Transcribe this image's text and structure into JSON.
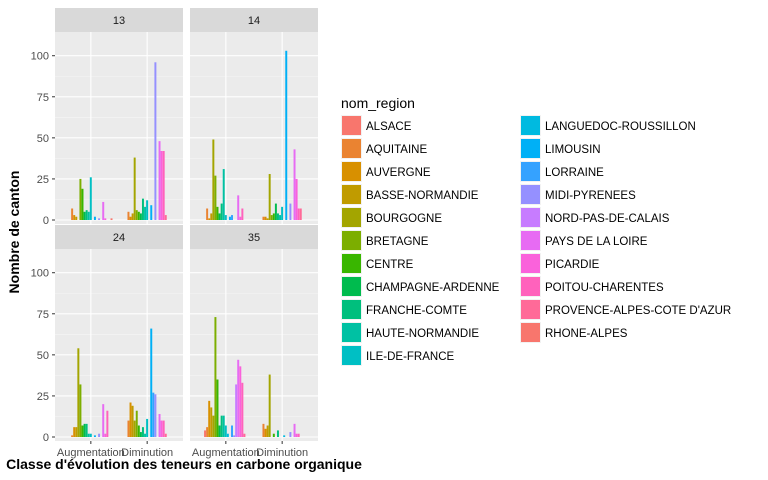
{
  "chart_data": {
    "type": "bar",
    "xlabel": "Classe d'évolution des teneurs en carbone organique",
    "ylabel": "Nombre de canton",
    "ylim": [
      0,
      112
    ],
    "yticks": [
      0,
      25,
      50,
      75,
      100
    ],
    "categories": [
      "Augmentation",
      "Diminution"
    ],
    "grid": true,
    "legend_position": "right",
    "legend_title": "nom_region",
    "regions": [
      {
        "name": "ALSACE",
        "color": "#F8766D"
      },
      {
        "name": "AQUITAINE",
        "color": "#EA8331"
      },
      {
        "name": "AUVERGNE",
        "color": "#D89000"
      },
      {
        "name": "BASSE-NORMANDIE",
        "color": "#C09B00"
      },
      {
        "name": "BOURGOGNE",
        "color": "#A3A500"
      },
      {
        "name": "BRETAGNE",
        "color": "#7CAE00"
      },
      {
        "name": "CENTRE",
        "color": "#39B600"
      },
      {
        "name": "CHAMPAGNE-ARDENNE",
        "color": "#00BB4E"
      },
      {
        "name": "FRANCHE-COMTE",
        "color": "#00BF7D"
      },
      {
        "name": "HAUTE-NORMANDIE",
        "color": "#00C1A3"
      },
      {
        "name": "ILE-DE-FRANCE",
        "color": "#00BFC4"
      },
      {
        "name": "LANGUEDOC-ROUSSILLON",
        "color": "#00BAE0"
      },
      {
        "name": "LIMOUSIN",
        "color": "#00B0F6"
      },
      {
        "name": "LORRAINE",
        "color": "#35A2FF"
      },
      {
        "name": "MIDI-PYRENEES",
        "color": "#9590FF"
      },
      {
        "name": "NORD-PAS-DE-CALAIS",
        "color": "#C77CFF"
      },
      {
        "name": "PAYS DE LA LOIRE",
        "color": "#E76BF3"
      },
      {
        "name": "PICARDIE",
        "color": "#FA62DB"
      },
      {
        "name": "POITOU-CHARENTES",
        "color": "#FF62BC"
      },
      {
        "name": "PROVENCE-ALPES-COTE D'AZUR",
        "color": "#FF6A98"
      },
      {
        "name": "RHONE-ALPES",
        "color": "#F8766D"
      }
    ],
    "panels": [
      {
        "label": "13",
        "values": {
          "Augmentation": [
            0,
            7,
            3,
            2,
            0,
            25,
            19,
            5,
            6,
            5,
            26,
            0,
            2,
            0,
            1,
            0,
            11,
            1,
            0,
            0,
            1
          ],
          "Diminution": [
            0,
            5,
            2,
            4,
            38,
            6,
            5,
            4,
            13,
            8,
            12,
            0,
            9,
            0,
            96,
            0,
            48,
            42,
            42,
            3,
            0
          ]
        }
      },
      {
        "label": "14",
        "values": {
          "Augmentation": [
            0,
            7,
            1,
            4,
            49,
            27,
            8,
            4,
            10,
            31,
            3,
            0,
            2,
            3,
            0,
            0,
            15,
            2,
            7,
            0,
            0
          ],
          "Diminution": [
            0,
            2,
            2,
            1,
            28,
            3,
            4,
            10,
            4,
            3,
            8,
            0,
            103,
            0,
            10,
            0,
            43,
            25,
            7,
            7,
            0
          ]
        }
      },
      {
        "label": "24",
        "values": {
          "Augmentation": [
            0,
            1,
            6,
            6,
            54,
            32,
            7,
            8,
            8,
            2,
            2,
            0,
            1,
            0,
            2,
            0,
            20,
            2,
            16,
            0,
            0
          ],
          "Diminution": [
            0,
            10,
            21,
            19,
            10,
            16,
            7,
            3,
            6,
            2,
            11,
            0,
            66,
            27,
            26,
            0,
            14,
            10,
            10,
            2,
            0
          ]
        }
      },
      {
        "label": "35",
        "values": {
          "Augmentation": [
            4,
            6,
            22,
            18,
            13,
            73,
            35,
            7,
            13,
            13,
            7,
            2,
            0,
            7,
            1,
            32,
            47,
            43,
            33,
            2,
            0
          ],
          "Diminution": [
            0,
            8,
            5,
            7,
            38,
            0,
            2,
            0,
            4,
            0,
            0,
            1,
            0,
            0,
            3,
            0,
            8,
            2,
            2,
            0,
            0
          ]
        }
      }
    ]
  }
}
